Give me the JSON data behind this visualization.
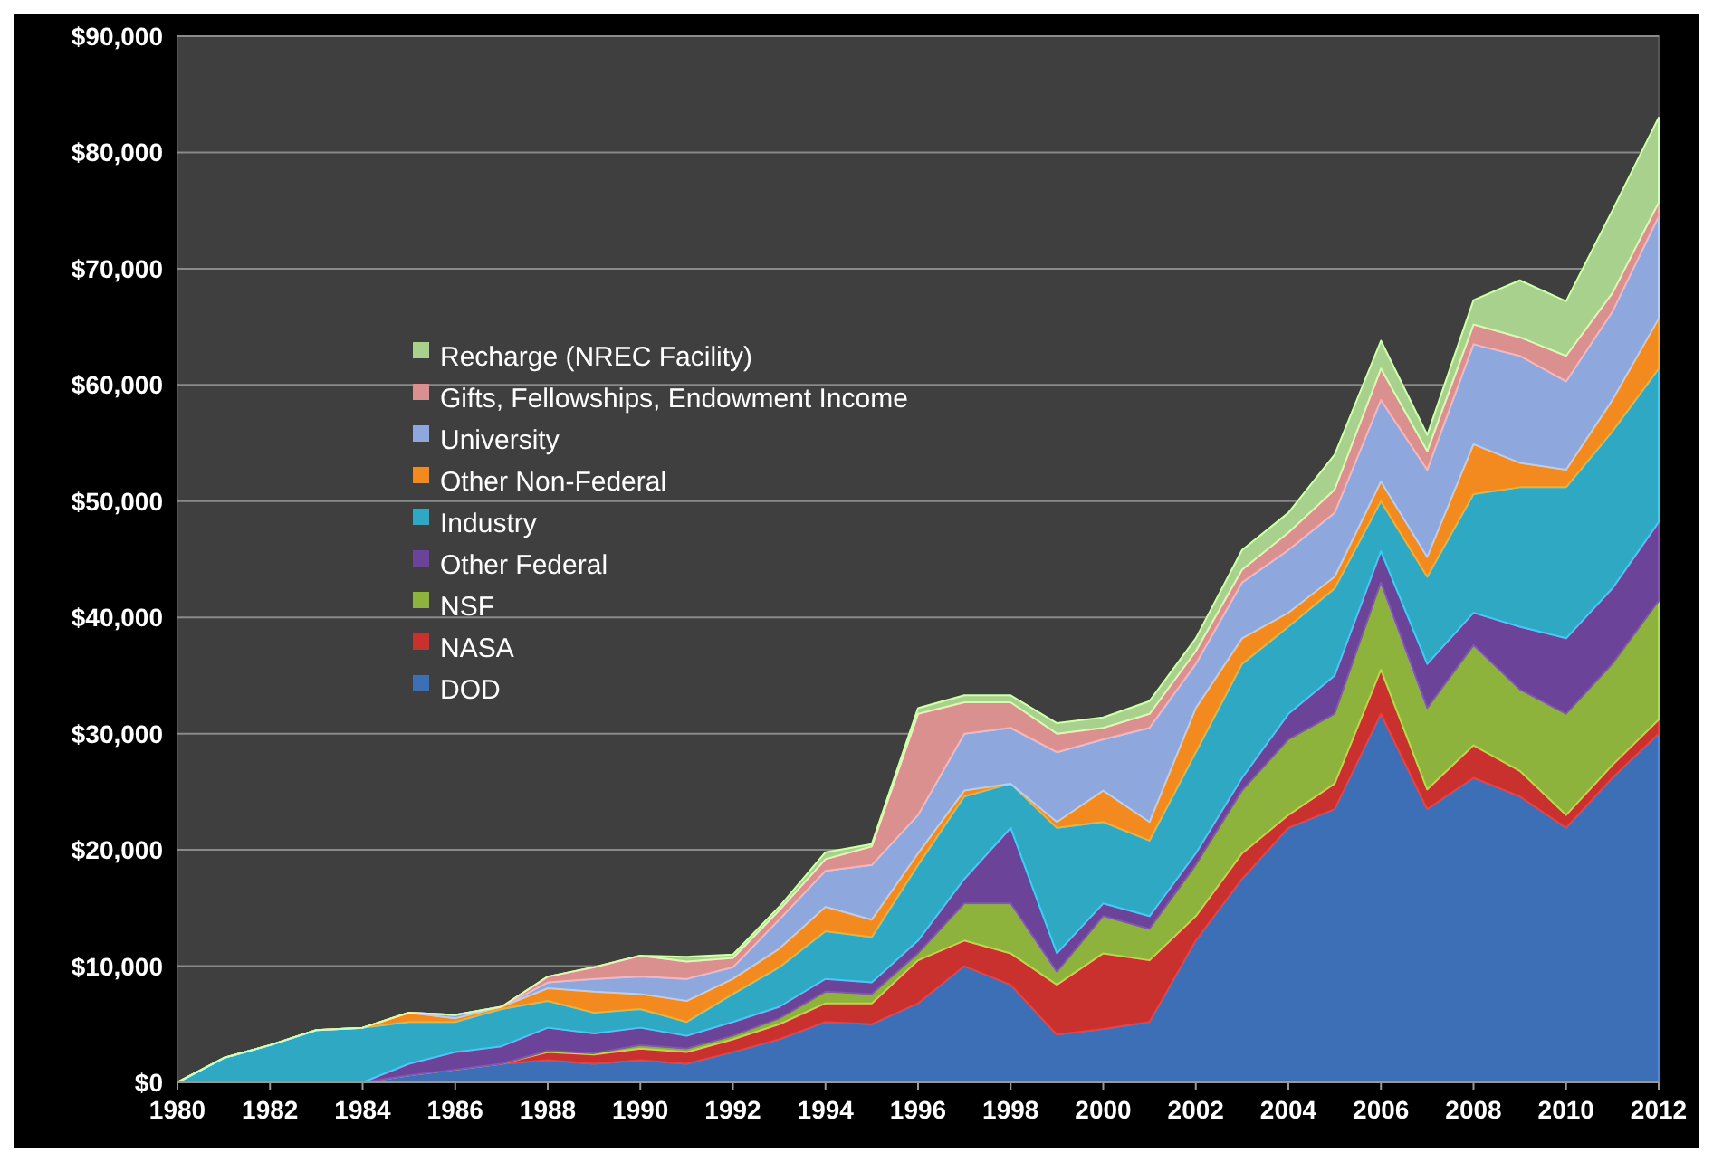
{
  "chart_data": {
    "type": "area",
    "stacked": true,
    "x": [
      1980,
      1981,
      1982,
      1983,
      1984,
      1985,
      1986,
      1987,
      1988,
      1989,
      1990,
      1991,
      1992,
      1993,
      1994,
      1995,
      1996,
      1997,
      1998,
      1999,
      2000,
      2001,
      2002,
      2003,
      2004,
      2005,
      2006,
      2007,
      2008,
      2009,
      2010,
      2011,
      2012
    ],
    "xlim": [
      1980,
      2012
    ],
    "xticks": [
      1980,
      1982,
      1984,
      1986,
      1988,
      1990,
      1992,
      1994,
      1996,
      1998,
      2000,
      2002,
      2004,
      2006,
      2008,
      2010,
      2012
    ],
    "ylim": [
      0,
      90000
    ],
    "yticks": [
      {
        "value": 0,
        "label": "$0"
      },
      {
        "value": 10000,
        "label": "$10,000"
      },
      {
        "value": 20000,
        "label": "$20,000"
      },
      {
        "value": 30000,
        "label": "$30,000"
      },
      {
        "value": 40000,
        "label": "$40,000"
      },
      {
        "value": 50000,
        "label": "$50,000"
      },
      {
        "value": 60000,
        "label": "$60,000"
      },
      {
        "value": 70000,
        "label": "$70,000"
      },
      {
        "value": 80000,
        "label": "$80,000"
      },
      {
        "value": 90000,
        "label": "$90,000"
      }
    ],
    "grid": "y",
    "legend": "top left",
    "series": [
      {
        "name": "DOD",
        "color": "#3d6fb6",
        "values": [
          0,
          0,
          0,
          0,
          0,
          600,
          1100,
          1600,
          1900,
          1600,
          1900,
          1600,
          2600,
          3700,
          5200,
          5000,
          6800,
          10000,
          8400,
          4100,
          4600,
          5200,
          12200,
          17500,
          21900,
          23500,
          31700,
          23500,
          26200,
          24600,
          21900,
          26200,
          30000
        ]
      },
      {
        "name": "NASA",
        "color": "#c8312e",
        "values": [
          0,
          0,
          0,
          0,
          0,
          0,
          0,
          0,
          700,
          800,
          1000,
          1000,
          1100,
          1300,
          1600,
          1800,
          3700,
          2200,
          2700,
          4300,
          6500,
          5300,
          2100,
          2200,
          1100,
          2200,
          3800,
          1700,
          2800,
          2200,
          1100,
          1100,
          1200
        ]
      },
      {
        "name": "NSF",
        "color": "#8db33c",
        "values": [
          0,
          0,
          0,
          0,
          0,
          0,
          0,
          0,
          100,
          100,
          300,
          300,
          300,
          500,
          1000,
          800,
          600,
          3200,
          4300,
          1100,
          3200,
          2700,
          4400,
          5400,
          6500,
          6000,
          7500,
          7000,
          8600,
          7000,
          8700,
          8700,
          10200
        ]
      },
      {
        "name": "Other Federal",
        "color": "#6b449a",
        "values": [
          0,
          0,
          0,
          0,
          0,
          1000,
          1500,
          1500,
          2000,
          1700,
          1500,
          1100,
          1200,
          1000,
          1100,
          1000,
          1100,
          2100,
          6500,
          1600,
          1100,
          1100,
          1000,
          1100,
          2200,
          3300,
          2700,
          3800,
          2800,
          5400,
          6500,
          6500,
          6800
        ]
      },
      {
        "name": "Industry",
        "color": "#2fa8c4",
        "values": [
          0,
          2100,
          3200,
          4500,
          4700,
          3600,
          2600,
          3200,
          2300,
          1800,
          1600,
          1200,
          2400,
          3400,
          4100,
          3900,
          6500,
          7100,
          3800,
          10800,
          7000,
          6500,
          8700,
          9800,
          7500,
          7500,
          4300,
          7500,
          10200,
          12000,
          13000,
          13500,
          13200
        ]
      },
      {
        "name": "Other Non-Federal",
        "color": "#f38a1f",
        "values": [
          0,
          0,
          0,
          0,
          0,
          800,
          300,
          200,
          1100,
          1800,
          1300,
          1800,
          1300,
          1600,
          2100,
          1500,
          1000,
          500,
          0,
          500,
          2700,
          1600,
          3800,
          2200,
          1200,
          1000,
          1700,
          1700,
          4300,
          2100,
          1500,
          2700,
          4300
        ]
      },
      {
        "name": "University",
        "color": "#8ea7dc",
        "values": [
          0,
          0,
          0,
          0,
          0,
          0,
          300,
          0,
          500,
          1100,
          1500,
          1900,
          1000,
          2500,
          3100,
          4700,
          3300,
          4900,
          4800,
          6000,
          4400,
          8100,
          3800,
          4800,
          5400,
          5500,
          7000,
          7500,
          8600,
          9200,
          7600,
          7600,
          8800
        ]
      },
      {
        "name": "Gifts, Fellowships, Endowment Income",
        "color": "#d9908f",
        "values": [
          0,
          0,
          0,
          0,
          0,
          0,
          0,
          0,
          500,
          1000,
          1800,
          1500,
          800,
          800,
          1000,
          1600,
          8700,
          2700,
          2200,
          1600,
          1000,
          1200,
          1100,
          1100,
          1500,
          2000,
          2700,
          1600,
          1700,
          1600,
          2200,
          1600,
          1200
        ]
      },
      {
        "name": "Recharge (NREC Facility)",
        "color": "#a9d18e",
        "values": [
          0,
          0,
          0,
          0,
          0,
          0,
          0,
          0,
          0,
          0,
          0,
          400,
          300,
          300,
          600,
          200,
          500,
          600,
          600,
          900,
          900,
          1100,
          1100,
          1700,
          1700,
          3000,
          2400,
          1400,
          2100,
          4900,
          4700,
          7100,
          7300
        ]
      }
    ]
  }
}
